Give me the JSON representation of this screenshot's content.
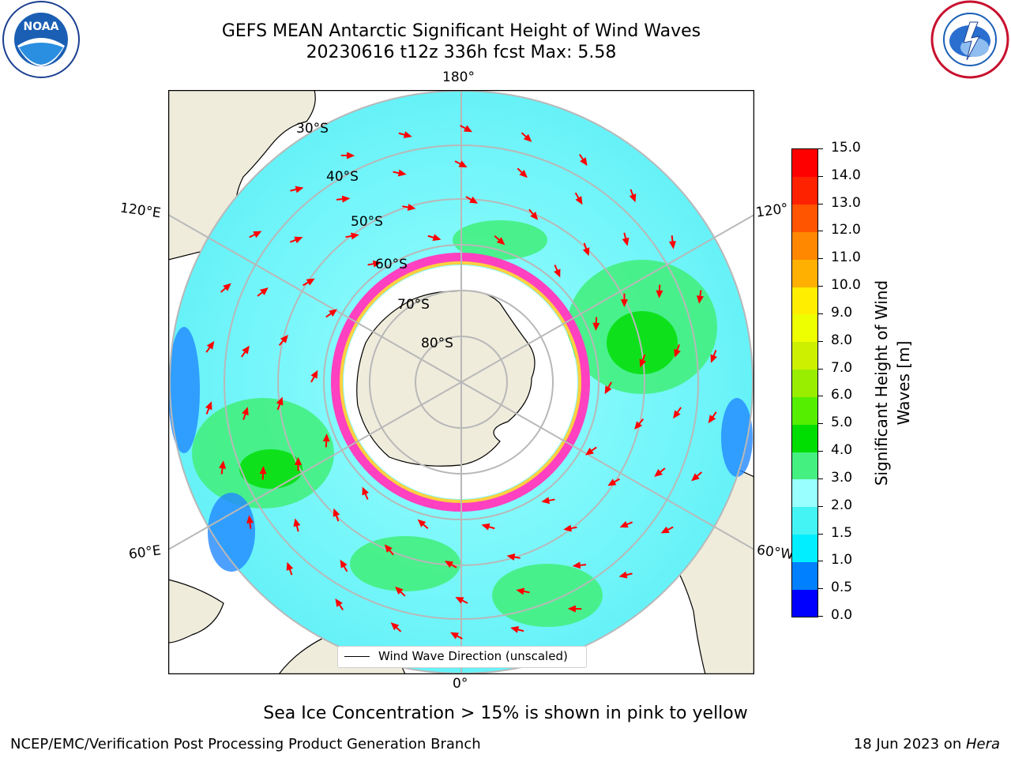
{
  "header": {
    "title_line1": "GEFS MEAN Antarctic Significant Height of Wind Waves",
    "title_line2": "20230616 t12z 336h fcst   Max: 5.58"
  },
  "logos": {
    "noaa": {
      "text": "NOAA",
      "ring_text": "NATIONAL OCEANIC AND ATMOSPHERIC ADMINISTRATION · U.S. DEPARTMENT OF COMMERCE"
    },
    "nws": {
      "ring_text": "NATIONAL WEATHER SERVICE"
    }
  },
  "map": {
    "meridian_labels": {
      "top": "180°",
      "bottom": "0°",
      "left_upper": "120°E",
      "left_lower": "60°E",
      "right_upper": "120°",
      "right_lower": "60°W"
    },
    "parallel_labels": [
      "30°S",
      "40°S",
      "50°S",
      "60°S",
      "70°S",
      "80°S"
    ],
    "legend_label": "Wind Wave Direction (unscaled)"
  },
  "colorbar": {
    "label_line1": "Significant Height of Wind",
    "label_line2": "Waves [m]",
    "ticks": [
      "0.0",
      "0.5",
      "1.0",
      "1.5",
      "2.0",
      "3.0",
      "4.0",
      "5.0",
      "6.0",
      "7.0",
      "8.0",
      "9.0",
      "10.0",
      "11.0",
      "12.0",
      "13.0",
      "14.0",
      "15.0"
    ],
    "colors": [
      "#0000ff",
      "#0080ff",
      "#00eeff",
      "#44f4f4",
      "#99ffff",
      "#44f080",
      "#00dd00",
      "#55ee00",
      "#99ee00",
      "#ccf000",
      "#eeff00",
      "#ffee00",
      "#ffb000",
      "#ff8800",
      "#ff5500",
      "#ff2200",
      "#ff0000"
    ]
  },
  "note": "Sea Ice Concentration > 15% is shown in pink to yellow",
  "footer": {
    "left": "NCEP/EMC/Verification Post Processing Product Generation Branch",
    "right_date": "18 Jun 2023 on ",
    "right_machine": "Hera"
  }
}
